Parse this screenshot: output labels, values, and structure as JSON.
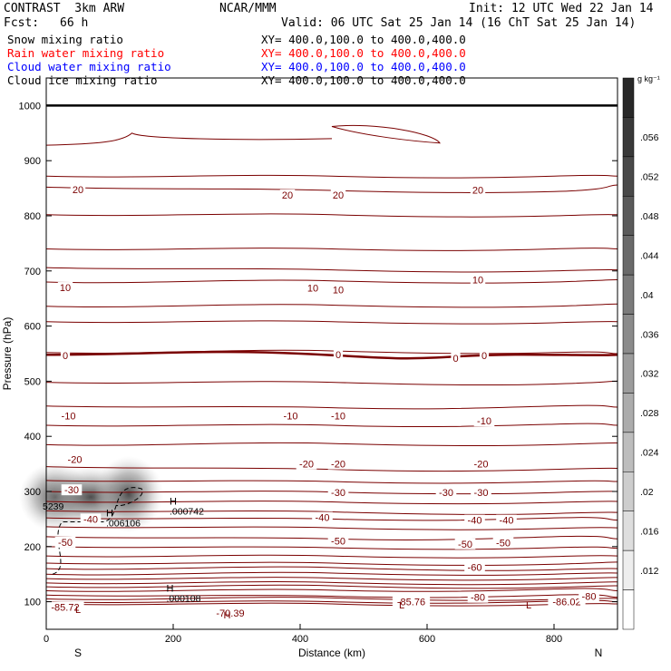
{
  "header": {
    "model": "CONTRAST  3km ARW",
    "center": "NCAR/MMM",
    "init": "Init: 12 UTC Wed 22 Jan 14",
    "fcst_label": "Fcst:",
    "fcst_value": "66 h",
    "valid": "Valid: 06 UTC Sat 25 Jan 14 (16 ChT Sat 25 Jan 14)"
  },
  "fields": [
    {
      "label": "Snow mixing ratio",
      "xy": "XY= 400.0,100.0 to 400.0,400.0",
      "color": "#000000"
    },
    {
      "label": "Rain water mixing ratio",
      "xy": "XY= 400.0,100.0 to 400.0,400.0",
      "color": "#ff0000"
    },
    {
      "label": "Cloud water mixing ratio",
      "xy": "XY= 400.0,100.0 to 400.0,400.0",
      "color": "#0000ff"
    },
    {
      "label": "Cloud ice mixing ratio",
      "xy": "XY= 400.0,100.0 to 400.0,400.0",
      "color": "#000000"
    }
  ],
  "chart_data": {
    "type": "heatmap",
    "xlabel": "Distance (km)",
    "ylabel": "Pressure (hPa)",
    "xlim": [
      0,
      900
    ],
    "ylim": [
      1050,
      50
    ],
    "x_ticks": [
      0,
      200,
      400,
      600,
      800
    ],
    "y_ticks": [
      100,
      200,
      300,
      400,
      500,
      600,
      700,
      800,
      900,
      1000
    ],
    "x_end_labels": {
      "left": "S",
      "right": "N"
    },
    "colorbar": {
      "unit": "g kg⁻¹",
      "ticks": [
        ".056",
        ".052",
        ".048",
        ".044",
        ".04",
        ".036",
        ".032",
        ".028",
        ".024",
        ".02",
        ".016",
        ".012"
      ]
    },
    "contour_color": "#7a0000",
    "contour_labels": [
      {
        "text": "-85.72",
        "x": 30,
        "p": 90
      },
      {
        "text": "-70.39",
        "x": 290,
        "p": 80
      },
      {
        "text": "-85.76",
        "x": 575,
        "p": 100
      },
      {
        "text": "-86.02",
        "x": 820,
        "p": 100
      },
      {
        "text": "-80",
        "x": 680,
        "p": 108
      },
      {
        "text": "-80",
        "x": 855,
        "p": 110
      },
      {
        "text": "-60",
        "x": 675,
        "p": 163
      },
      {
        "text": "-50",
        "x": 30,
        "p": 208
      },
      {
        "text": "-50",
        "x": 460,
        "p": 210
      },
      {
        "text": "-50",
        "x": 660,
        "p": 205
      },
      {
        "text": "-50",
        "x": 720,
        "p": 207
      },
      {
        "text": "-40",
        "x": 70,
        "p": 250
      },
      {
        "text": "-40",
        "x": 435,
        "p": 253
      },
      {
        "text": "-40",
        "x": 675,
        "p": 248
      },
      {
        "text": "-40",
        "x": 725,
        "p": 248
      },
      {
        "text": "-30",
        "x": 40,
        "p": 303
      },
      {
        "text": "-30",
        "x": 460,
        "p": 298
      },
      {
        "text": "-30",
        "x": 630,
        "p": 298
      },
      {
        "text": "-30",
        "x": 685,
        "p": 298
      },
      {
        "text": "-20",
        "x": 45,
        "p": 358
      },
      {
        "text": "-20",
        "x": 410,
        "p": 350
      },
      {
        "text": "-20",
        "x": 460,
        "p": 350
      },
      {
        "text": "-20",
        "x": 685,
        "p": 350
      },
      {
        "text": "-10",
        "x": 35,
        "p": 437
      },
      {
        "text": "-10",
        "x": 385,
        "p": 437
      },
      {
        "text": "-10",
        "x": 460,
        "p": 437
      },
      {
        "text": "-10",
        "x": 690,
        "p": 428
      },
      {
        "text": "0",
        "x": 30,
        "p": 547
      },
      {
        "text": "0",
        "x": 460,
        "p": 548
      },
      {
        "text": "0",
        "x": 645,
        "p": 542
      },
      {
        "text": "0",
        "x": 690,
        "p": 547
      },
      {
        "text": "10",
        "x": 30,
        "p": 670
      },
      {
        "text": "10",
        "x": 420,
        "p": 669
      },
      {
        "text": "10",
        "x": 460,
        "p": 666
      },
      {
        "text": "10",
        "x": 680,
        "p": 684
      },
      {
        "text": "20",
        "x": 50,
        "p": 848
      },
      {
        "text": "20",
        "x": 380,
        "p": 838
      },
      {
        "text": "20",
        "x": 460,
        "p": 838
      },
      {
        "text": "20",
        "x": 680,
        "p": 847
      }
    ],
    "extrema": [
      {
        "mark": "L",
        "x": 50,
        "p": 80
      },
      {
        "mark": "H",
        "x": 285,
        "p": 70
      },
      {
        "mark": "L",
        "x": 560,
        "p": 88
      },
      {
        "mark": "L",
        "x": 760,
        "p": 88
      },
      {
        "mark": "H",
        "x": 195,
        "p": 118,
        "value": ".000108"
      },
      {
        "mark": "H",
        "x": 100,
        "p": 255,
        "value": ".006106"
      },
      {
        "mark": "H",
        "x": 200,
        "p": 276,
        "value": ".000742"
      },
      {
        "value": "5239",
        "x": 0,
        "p": 267
      }
    ]
  }
}
